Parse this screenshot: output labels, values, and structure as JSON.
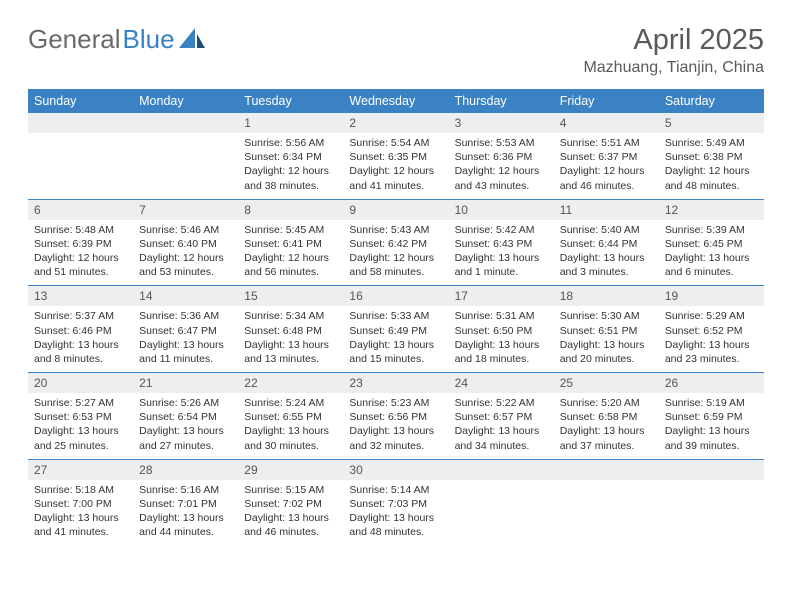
{
  "brand": {
    "part1": "General",
    "part2": "Blue"
  },
  "title": "April 2025",
  "location": "Mazhuang, Tianjin, China",
  "colors": {
    "header_bg": "#3b82c4",
    "header_text": "#ffffff",
    "daynum_bg": "#eceeef",
    "border": "#3b82c4",
    "text": "#333333",
    "brand_gray": "#6a6a6a",
    "brand_blue": "#3b82c4"
  },
  "day_names": [
    "Sunday",
    "Monday",
    "Tuesday",
    "Wednesday",
    "Thursday",
    "Friday",
    "Saturday"
  ],
  "weeks": [
    [
      {
        "n": "",
        "sunrise": "",
        "sunset": "",
        "daylight": ""
      },
      {
        "n": "",
        "sunrise": "",
        "sunset": "",
        "daylight": ""
      },
      {
        "n": "1",
        "sunrise": "Sunrise: 5:56 AM",
        "sunset": "Sunset: 6:34 PM",
        "daylight": "Daylight: 12 hours and 38 minutes."
      },
      {
        "n": "2",
        "sunrise": "Sunrise: 5:54 AM",
        "sunset": "Sunset: 6:35 PM",
        "daylight": "Daylight: 12 hours and 41 minutes."
      },
      {
        "n": "3",
        "sunrise": "Sunrise: 5:53 AM",
        "sunset": "Sunset: 6:36 PM",
        "daylight": "Daylight: 12 hours and 43 minutes."
      },
      {
        "n": "4",
        "sunrise": "Sunrise: 5:51 AM",
        "sunset": "Sunset: 6:37 PM",
        "daylight": "Daylight: 12 hours and 46 minutes."
      },
      {
        "n": "5",
        "sunrise": "Sunrise: 5:49 AM",
        "sunset": "Sunset: 6:38 PM",
        "daylight": "Daylight: 12 hours and 48 minutes."
      }
    ],
    [
      {
        "n": "6",
        "sunrise": "Sunrise: 5:48 AM",
        "sunset": "Sunset: 6:39 PM",
        "daylight": "Daylight: 12 hours and 51 minutes."
      },
      {
        "n": "7",
        "sunrise": "Sunrise: 5:46 AM",
        "sunset": "Sunset: 6:40 PM",
        "daylight": "Daylight: 12 hours and 53 minutes."
      },
      {
        "n": "8",
        "sunrise": "Sunrise: 5:45 AM",
        "sunset": "Sunset: 6:41 PM",
        "daylight": "Daylight: 12 hours and 56 minutes."
      },
      {
        "n": "9",
        "sunrise": "Sunrise: 5:43 AM",
        "sunset": "Sunset: 6:42 PM",
        "daylight": "Daylight: 12 hours and 58 minutes."
      },
      {
        "n": "10",
        "sunrise": "Sunrise: 5:42 AM",
        "sunset": "Sunset: 6:43 PM",
        "daylight": "Daylight: 13 hours and 1 minute."
      },
      {
        "n": "11",
        "sunrise": "Sunrise: 5:40 AM",
        "sunset": "Sunset: 6:44 PM",
        "daylight": "Daylight: 13 hours and 3 minutes."
      },
      {
        "n": "12",
        "sunrise": "Sunrise: 5:39 AM",
        "sunset": "Sunset: 6:45 PM",
        "daylight": "Daylight: 13 hours and 6 minutes."
      }
    ],
    [
      {
        "n": "13",
        "sunrise": "Sunrise: 5:37 AM",
        "sunset": "Sunset: 6:46 PM",
        "daylight": "Daylight: 13 hours and 8 minutes."
      },
      {
        "n": "14",
        "sunrise": "Sunrise: 5:36 AM",
        "sunset": "Sunset: 6:47 PM",
        "daylight": "Daylight: 13 hours and 11 minutes."
      },
      {
        "n": "15",
        "sunrise": "Sunrise: 5:34 AM",
        "sunset": "Sunset: 6:48 PM",
        "daylight": "Daylight: 13 hours and 13 minutes."
      },
      {
        "n": "16",
        "sunrise": "Sunrise: 5:33 AM",
        "sunset": "Sunset: 6:49 PM",
        "daylight": "Daylight: 13 hours and 15 minutes."
      },
      {
        "n": "17",
        "sunrise": "Sunrise: 5:31 AM",
        "sunset": "Sunset: 6:50 PM",
        "daylight": "Daylight: 13 hours and 18 minutes."
      },
      {
        "n": "18",
        "sunrise": "Sunrise: 5:30 AM",
        "sunset": "Sunset: 6:51 PM",
        "daylight": "Daylight: 13 hours and 20 minutes."
      },
      {
        "n": "19",
        "sunrise": "Sunrise: 5:29 AM",
        "sunset": "Sunset: 6:52 PM",
        "daylight": "Daylight: 13 hours and 23 minutes."
      }
    ],
    [
      {
        "n": "20",
        "sunrise": "Sunrise: 5:27 AM",
        "sunset": "Sunset: 6:53 PM",
        "daylight": "Daylight: 13 hours and 25 minutes."
      },
      {
        "n": "21",
        "sunrise": "Sunrise: 5:26 AM",
        "sunset": "Sunset: 6:54 PM",
        "daylight": "Daylight: 13 hours and 27 minutes."
      },
      {
        "n": "22",
        "sunrise": "Sunrise: 5:24 AM",
        "sunset": "Sunset: 6:55 PM",
        "daylight": "Daylight: 13 hours and 30 minutes."
      },
      {
        "n": "23",
        "sunrise": "Sunrise: 5:23 AM",
        "sunset": "Sunset: 6:56 PM",
        "daylight": "Daylight: 13 hours and 32 minutes."
      },
      {
        "n": "24",
        "sunrise": "Sunrise: 5:22 AM",
        "sunset": "Sunset: 6:57 PM",
        "daylight": "Daylight: 13 hours and 34 minutes."
      },
      {
        "n": "25",
        "sunrise": "Sunrise: 5:20 AM",
        "sunset": "Sunset: 6:58 PM",
        "daylight": "Daylight: 13 hours and 37 minutes."
      },
      {
        "n": "26",
        "sunrise": "Sunrise: 5:19 AM",
        "sunset": "Sunset: 6:59 PM",
        "daylight": "Daylight: 13 hours and 39 minutes."
      }
    ],
    [
      {
        "n": "27",
        "sunrise": "Sunrise: 5:18 AM",
        "sunset": "Sunset: 7:00 PM",
        "daylight": "Daylight: 13 hours and 41 minutes."
      },
      {
        "n": "28",
        "sunrise": "Sunrise: 5:16 AM",
        "sunset": "Sunset: 7:01 PM",
        "daylight": "Daylight: 13 hours and 44 minutes."
      },
      {
        "n": "29",
        "sunrise": "Sunrise: 5:15 AM",
        "sunset": "Sunset: 7:02 PM",
        "daylight": "Daylight: 13 hours and 46 minutes."
      },
      {
        "n": "30",
        "sunrise": "Sunrise: 5:14 AM",
        "sunset": "Sunset: 7:03 PM",
        "daylight": "Daylight: 13 hours and 48 minutes."
      },
      {
        "n": "",
        "sunrise": "",
        "sunset": "",
        "daylight": ""
      },
      {
        "n": "",
        "sunrise": "",
        "sunset": "",
        "daylight": ""
      },
      {
        "n": "",
        "sunrise": "",
        "sunset": "",
        "daylight": ""
      }
    ]
  ]
}
